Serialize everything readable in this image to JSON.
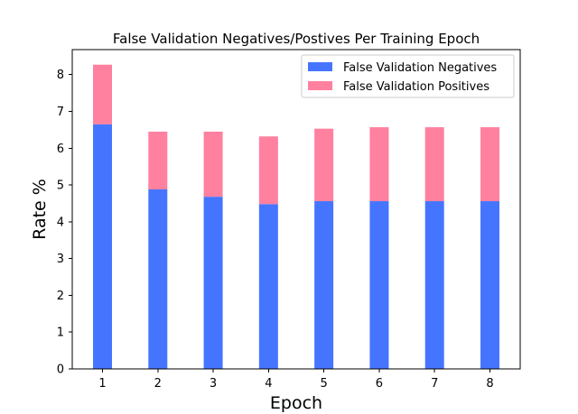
{
  "chart_data": {
    "type": "bar",
    "stacked": true,
    "title": "False Validation Negatives/Postives Per Training Epoch",
    "xlabel": "Epoch",
    "ylabel": "Rate %",
    "categories": [
      "1",
      "2",
      "3",
      "4",
      "5",
      "6",
      "7",
      "8"
    ],
    "series": [
      {
        "name": "False Validation Negatives",
        "color": "#4575ff",
        "values": [
          6.65,
          4.88,
          4.68,
          4.48,
          4.56,
          4.56,
          4.56,
          4.56
        ]
      },
      {
        "name": "False Validation Positives",
        "color": "#ff809f",
        "values": [
          1.62,
          1.57,
          1.77,
          1.84,
          1.97,
          2.01,
          2.01,
          2.01
        ]
      }
    ],
    "yticks": [
      0,
      1,
      2,
      3,
      4,
      5,
      6,
      7,
      8
    ],
    "ylim": [
      0,
      8.68
    ],
    "grid": false,
    "legend_position": "top-right"
  }
}
